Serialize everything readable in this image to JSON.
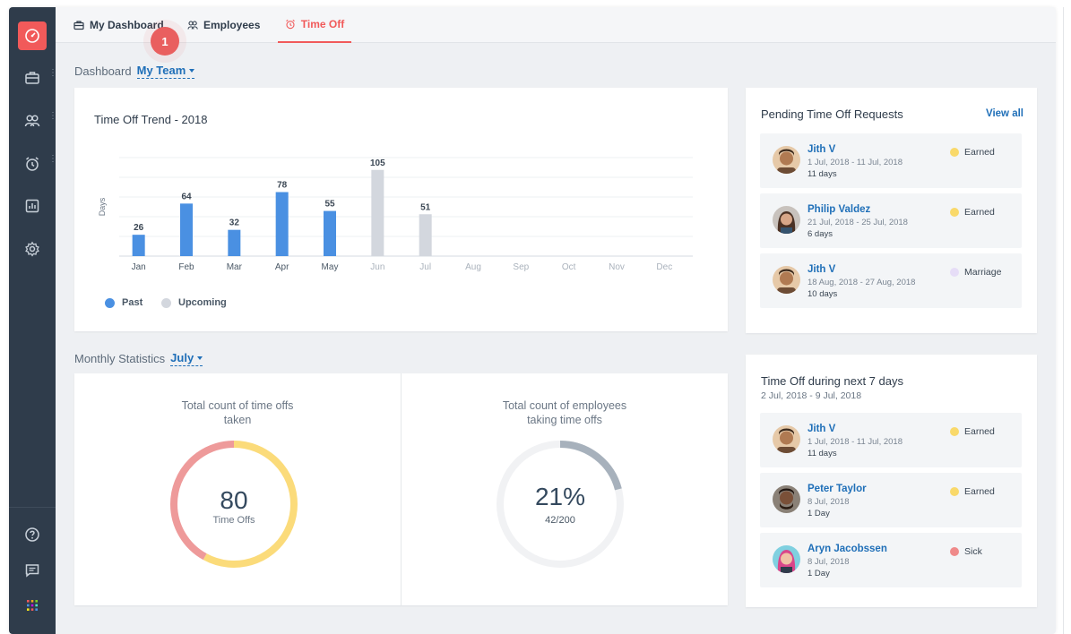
{
  "tabs": [
    {
      "label": "My Dashboard",
      "icon": "briefcase-icon"
    },
    {
      "label": "Employees",
      "icon": "people-icon"
    },
    {
      "label": "Time Off",
      "icon": "alarm-clock-icon",
      "active": true
    }
  ],
  "step_badge": "1",
  "sidebar": {
    "items": [
      "dashboard-icon",
      "briefcase-icon",
      "people-icon",
      "alarm-clock-icon",
      "report-icon",
      "settings-icon"
    ],
    "bottom": [
      "help-icon",
      "chat-icon",
      "apps-grid-icon"
    ]
  },
  "dashboard": {
    "label": "Dashboard",
    "scope": "My Team"
  },
  "trend": {
    "title": "Time Off Trend - 2018",
    "legend_past": "Past",
    "legend_upcoming": "Upcoming"
  },
  "chart_data": {
    "type": "bar",
    "title": "Time Off Trend - 2018",
    "ylabel": "Days",
    "categories": [
      "Jan",
      "Feb",
      "Mar",
      "Apr",
      "May",
      "Jun",
      "Jul",
      "Aug",
      "Sep",
      "Oct",
      "Nov",
      "Dec"
    ],
    "series": [
      {
        "name": "Past",
        "values": [
          26,
          64,
          32,
          78,
          55,
          null,
          null,
          null,
          null,
          null,
          null,
          null
        ],
        "color": "#4a90e2"
      },
      {
        "name": "Upcoming",
        "values": [
          null,
          null,
          null,
          null,
          null,
          105,
          51,
          null,
          null,
          null,
          null,
          null
        ],
        "color": "#d3d7de"
      }
    ],
    "ylim": [
      0,
      120
    ],
    "grid": true,
    "legend": "bottom-left"
  },
  "pending": {
    "title": "Pending Time Off Requests",
    "view_all": "View all",
    "items": [
      {
        "name": "Jith V",
        "dates": "1 Jul, 2018 - 11 Jul, 2018",
        "days": "11 days",
        "type": "Earned",
        "type_color": "#f9d96b"
      },
      {
        "name": "Philip Valdez",
        "dates": "21 Jul, 2018 - 25 Jul, 2018",
        "days": "6 days",
        "type": "Earned",
        "type_color": "#f9d96b"
      },
      {
        "name": "Jith V",
        "dates": "18 Aug, 2018 - 27 Aug, 2018",
        "days": "10 days",
        "type": "Marriage",
        "type_color": "#e6ddf7"
      }
    ]
  },
  "monthly": {
    "label": "Monthly Statistics",
    "month": "July"
  },
  "stat1": {
    "caption_1": "Total count of time offs",
    "caption_2": "taken",
    "value": "80",
    "unit": "Time Offs",
    "segments": [
      {
        "name": "yellow",
        "fraction": 0.58,
        "color": "#fbdb7a"
      },
      {
        "name": "red",
        "fraction": 0.42,
        "color": "#ee9a9a"
      }
    ]
  },
  "stat2": {
    "caption_1": "Total count of employees",
    "caption_2": "taking time offs",
    "value": "21%",
    "ratio": "42/200",
    "fraction": 0.21,
    "color": "#a7b1bc"
  },
  "next7": {
    "title": "Time Off during next 7 days",
    "range": "2 Jul, 2018 - 9 Jul, 2018",
    "items": [
      {
        "name": "Jith V",
        "dates": "1 Jul, 2018 - 11 Jul, 2018",
        "days": "11 days",
        "type": "Earned",
        "type_color": "#f9d96b"
      },
      {
        "name": "Peter Taylor",
        "dates": "8 Jul, 2018",
        "days": "1 Day",
        "type": "Earned",
        "type_color": "#f9d96b"
      },
      {
        "name": "Aryn Jacobssen",
        "dates": "8 Jul, 2018",
        "days": "1 Day",
        "type": "Sick",
        "type_color": "#ef8a8a"
      }
    ]
  }
}
